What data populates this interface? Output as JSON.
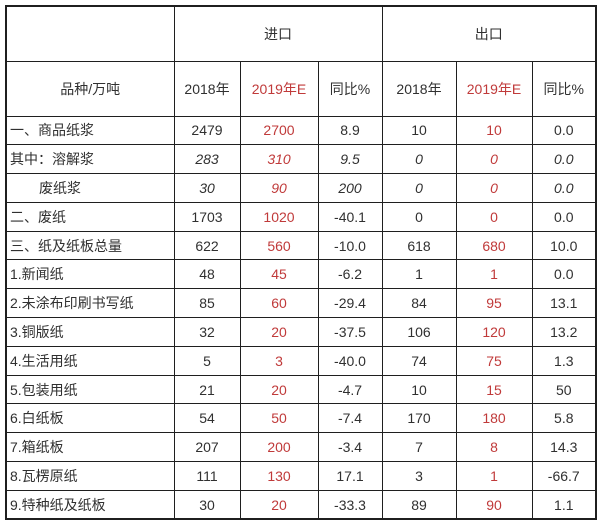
{
  "colors": {
    "border": "#1f1f1f",
    "text": "#303030",
    "accent_red": "#c03a3a",
    "background": "#ffffff"
  },
  "chart_data": {
    "type": "table",
    "title": "",
    "header_groups": [
      {
        "label": "",
        "span": 1
      },
      {
        "label": "进口",
        "span": 3
      },
      {
        "label": "出口",
        "span": 3
      }
    ],
    "header_cells": [
      "品种/万吨",
      "2018年",
      "2019年E",
      "同比%",
      "2018年",
      "2019年E",
      "同比%"
    ],
    "red_header_columns": [
      2,
      5
    ],
    "rows": [
      {
        "label": "一、商品纸浆",
        "values": [
          "2479",
          "2700",
          "8.9",
          "10",
          "10",
          "0.0"
        ],
        "italic": false,
        "indent": false
      },
      {
        "label": "其中：溶解浆",
        "values": [
          "283",
          "310",
          "9.5",
          "0",
          "0",
          "0.0"
        ],
        "italic": true,
        "indent": false
      },
      {
        "label": "废纸浆",
        "values": [
          "30",
          "90",
          "200",
          "0",
          "0",
          "0.0"
        ],
        "italic": true,
        "indent": true
      },
      {
        "label": "二、废纸",
        "values": [
          "1703",
          "1020",
          "-40.1",
          "0",
          "0",
          "0.0"
        ],
        "italic": false,
        "indent": false
      },
      {
        "label": "三、纸及纸板总量",
        "values": [
          "622",
          "560",
          "-10.0",
          "618",
          "680",
          "10.0"
        ],
        "italic": false,
        "indent": false
      },
      {
        "label": "1.新闻纸",
        "values": [
          "48",
          "45",
          "-6.2",
          "1",
          "1",
          "0.0"
        ],
        "italic": false,
        "indent": false
      },
      {
        "label": "2.未涂布印刷书写纸",
        "values": [
          "85",
          "60",
          "-29.4",
          "84",
          "95",
          "13.1"
        ],
        "italic": false,
        "indent": false
      },
      {
        "label": "3.铜版纸",
        "values": [
          "32",
          "20",
          "-37.5",
          "106",
          "120",
          "13.2"
        ],
        "italic": false,
        "indent": false
      },
      {
        "label": "4.生活用纸",
        "values": [
          "5",
          "3",
          "-40.0",
          "74",
          "75",
          "1.3"
        ],
        "italic": false,
        "indent": false
      },
      {
        "label": "5.包装用纸",
        "values": [
          "21",
          "20",
          "-4.7",
          "10",
          "15",
          "50"
        ],
        "italic": false,
        "indent": false
      },
      {
        "label": "6.白纸板",
        "values": [
          "54",
          "50",
          "-7.4",
          "170",
          "180",
          "5.8"
        ],
        "italic": false,
        "indent": false
      },
      {
        "label": "7.箱纸板",
        "values": [
          "207",
          "200",
          "-3.4",
          "7",
          "8",
          "14.3"
        ],
        "italic": false,
        "indent": false
      },
      {
        "label": "8.瓦楞原纸",
        "values": [
          "111",
          "130",
          "17.1",
          "3",
          "1",
          "-66.7"
        ],
        "italic": false,
        "indent": false
      },
      {
        "label": "9.特种纸及纸板",
        "values": [
          "30",
          "20",
          "-33.3",
          "89",
          "90",
          "1.1"
        ],
        "italic": false,
        "indent": false
      }
    ]
  }
}
